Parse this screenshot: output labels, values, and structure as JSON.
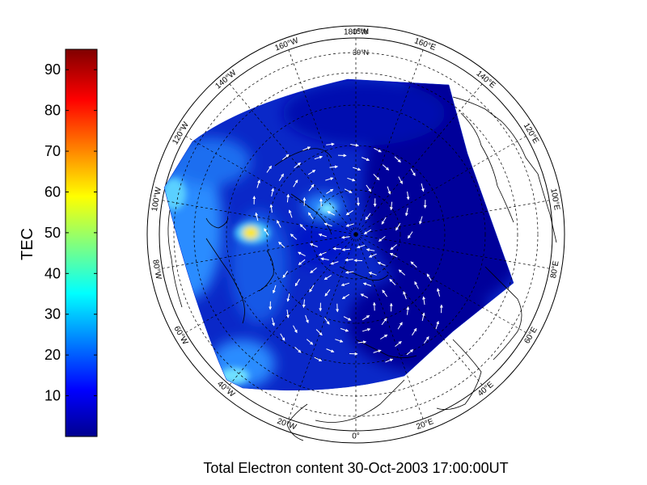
{
  "title": "Total Electron content 30-Oct-2003 17:00:00UT",
  "colorbar": {
    "label": "TEC",
    "min": 0,
    "max": 95,
    "ticks": [
      "10",
      "20",
      "30",
      "40",
      "50",
      "60",
      "70",
      "80",
      "90"
    ],
    "colormap": [
      "#00008f",
      "#0000ff",
      "#00ffff",
      "#ffff00",
      "#ff0000",
      "#800000"
    ]
  },
  "map": {
    "projection": "polar-stereographic-north",
    "longitude_labels": [
      "180°W",
      "160°E",
      "140°E",
      "120°E",
      "100°E",
      "80°E",
      "60°E",
      "40°E",
      "20°E",
      "0°",
      "20°W",
      "40°W",
      "60°W",
      "80°W",
      "100°W",
      "120°W",
      "140°W",
      "160°W"
    ],
    "latitude_labels": [
      "15°N",
      "30°N"
    ],
    "colors": {
      "background_tec": "#0a28c8",
      "dark_tec": "#00009a",
      "mid_tec": "#2a8cff",
      "high_tec": "#ffe800",
      "arrows": "#ffffff",
      "coast": "#000000"
    }
  }
}
